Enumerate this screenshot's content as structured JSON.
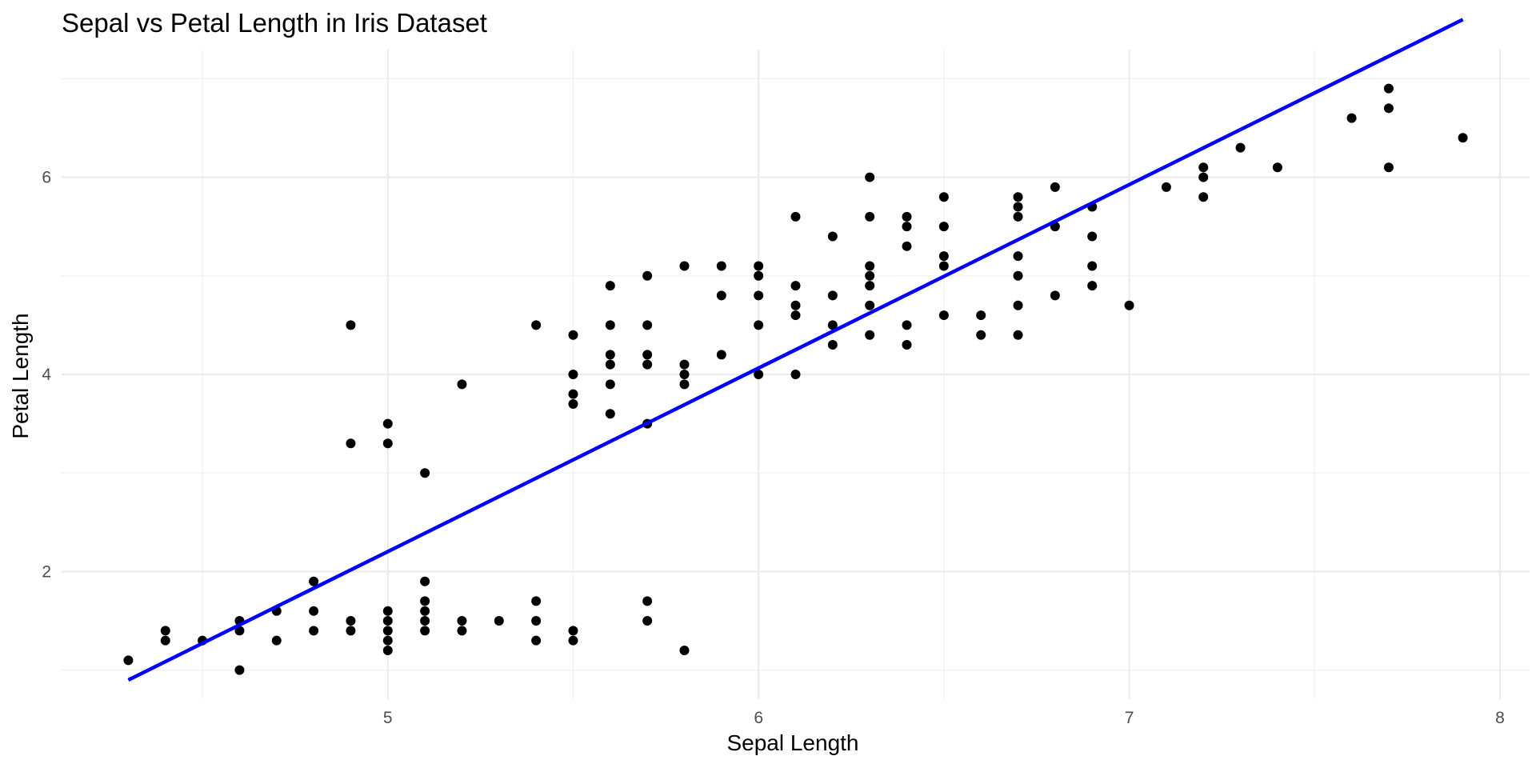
{
  "chart_data": {
    "type": "scatter",
    "title": "Sepal vs Petal Length in Iris Dataset",
    "xlabel": "Sepal Length",
    "ylabel": "Petal Length",
    "xlim": [
      4.12,
      8.08
    ],
    "ylim": [
      0.705,
      7.295
    ],
    "x_ticks": [
      5,
      6,
      7,
      8
    ],
    "y_ticks": [
      2,
      4,
      6
    ],
    "x_minor": [
      4.5,
      5.5,
      6.5,
      7.5
    ],
    "y_minor": [
      1,
      3,
      5,
      7
    ],
    "grid": true,
    "legend": "none",
    "point_color": "#000000",
    "line_color": "#0000ff",
    "trendline": {
      "x": [
        4.3,
        7.9
      ],
      "y": [
        0.9,
        7.6
      ]
    },
    "points": [
      [
        4.3,
        1.1
      ],
      [
        4.4,
        1.4
      ],
      [
        4.4,
        1.3
      ],
      [
        4.5,
        1.3
      ],
      [
        4.6,
        1.5
      ],
      [
        4.6,
        1.4
      ],
      [
        4.6,
        1.0
      ],
      [
        4.7,
        1.6
      ],
      [
        4.7,
        1.3
      ],
      [
        4.8,
        1.9
      ],
      [
        4.8,
        1.6
      ],
      [
        4.8,
        1.4
      ],
      [
        4.9,
        4.5
      ],
      [
        4.9,
        3.3
      ],
      [
        4.9,
        1.5
      ],
      [
        4.9,
        1.4
      ],
      [
        5.0,
        3.5
      ],
      [
        5.0,
        3.3
      ],
      [
        5.0,
        1.6
      ],
      [
        5.0,
        1.5
      ],
      [
        5.0,
        1.4
      ],
      [
        5.0,
        1.3
      ],
      [
        5.0,
        1.2
      ],
      [
        5.1,
        3.0
      ],
      [
        5.1,
        1.9
      ],
      [
        5.1,
        1.7
      ],
      [
        5.1,
        1.6
      ],
      [
        5.1,
        1.5
      ],
      [
        5.1,
        1.4
      ],
      [
        5.2,
        3.9
      ],
      [
        5.2,
        1.5
      ],
      [
        5.2,
        1.4
      ],
      [
        5.3,
        1.5
      ],
      [
        5.4,
        4.5
      ],
      [
        5.4,
        1.7
      ],
      [
        5.4,
        1.5
      ],
      [
        5.4,
        1.3
      ],
      [
        5.5,
        4.4
      ],
      [
        5.5,
        4.0
      ],
      [
        5.5,
        3.8
      ],
      [
        5.5,
        3.7
      ],
      [
        5.5,
        1.4
      ],
      [
        5.5,
        1.3
      ],
      [
        5.6,
        4.9
      ],
      [
        5.6,
        4.5
      ],
      [
        5.6,
        4.2
      ],
      [
        5.6,
        4.1
      ],
      [
        5.6,
        3.9
      ],
      [
        5.6,
        3.6
      ],
      [
        5.7,
        5.0
      ],
      [
        5.7,
        4.5
      ],
      [
        5.7,
        4.2
      ],
      [
        5.7,
        4.1
      ],
      [
        5.7,
        3.5
      ],
      [
        5.7,
        1.7
      ],
      [
        5.7,
        1.5
      ],
      [
        5.8,
        5.1
      ],
      [
        5.8,
        4.1
      ],
      [
        5.8,
        4.0
      ],
      [
        5.8,
        3.9
      ],
      [
        5.8,
        1.2
      ],
      [
        5.9,
        5.1
      ],
      [
        5.9,
        4.8
      ],
      [
        5.9,
        4.2
      ],
      [
        6.0,
        5.1
      ],
      [
        6.0,
        5.0
      ],
      [
        6.0,
        4.8
      ],
      [
        6.0,
        4.5
      ],
      [
        6.0,
        4.0
      ],
      [
        6.1,
        5.6
      ],
      [
        6.1,
        4.9
      ],
      [
        6.1,
        4.7
      ],
      [
        6.1,
        4.6
      ],
      [
        6.1,
        4.0
      ],
      [
        6.2,
        5.4
      ],
      [
        6.2,
        4.8
      ],
      [
        6.2,
        4.5
      ],
      [
        6.2,
        4.3
      ],
      [
        6.3,
        6.0
      ],
      [
        6.3,
        5.6
      ],
      [
        6.3,
        5.1
      ],
      [
        6.3,
        5.0
      ],
      [
        6.3,
        4.9
      ],
      [
        6.3,
        4.7
      ],
      [
        6.3,
        4.4
      ],
      [
        6.4,
        5.6
      ],
      [
        6.4,
        5.5
      ],
      [
        6.4,
        5.3
      ],
      [
        6.4,
        4.5
      ],
      [
        6.4,
        4.3
      ],
      [
        6.5,
        5.8
      ],
      [
        6.5,
        5.5
      ],
      [
        6.5,
        5.2
      ],
      [
        6.5,
        5.1
      ],
      [
        6.5,
        4.6
      ],
      [
        6.6,
        4.6
      ],
      [
        6.6,
        4.4
      ],
      [
        6.7,
        5.8
      ],
      [
        6.7,
        5.7
      ],
      [
        6.7,
        5.6
      ],
      [
        6.7,
        5.2
      ],
      [
        6.7,
        5.0
      ],
      [
        6.7,
        4.7
      ],
      [
        6.7,
        4.4
      ],
      [
        6.8,
        5.9
      ],
      [
        6.8,
        5.5
      ],
      [
        6.8,
        4.8
      ],
      [
        6.9,
        5.7
      ],
      [
        6.9,
        5.4
      ],
      [
        6.9,
        5.1
      ],
      [
        6.9,
        4.9
      ],
      [
        7.0,
        4.7
      ],
      [
        7.1,
        5.9
      ],
      [
        7.2,
        6.1
      ],
      [
        7.2,
        6.0
      ],
      [
        7.2,
        5.8
      ],
      [
        7.3,
        6.3
      ],
      [
        7.4,
        6.1
      ],
      [
        7.6,
        6.6
      ],
      [
        7.7,
        6.9
      ],
      [
        7.7,
        6.7
      ],
      [
        7.7,
        6.1
      ],
      [
        7.9,
        6.4
      ]
    ]
  }
}
